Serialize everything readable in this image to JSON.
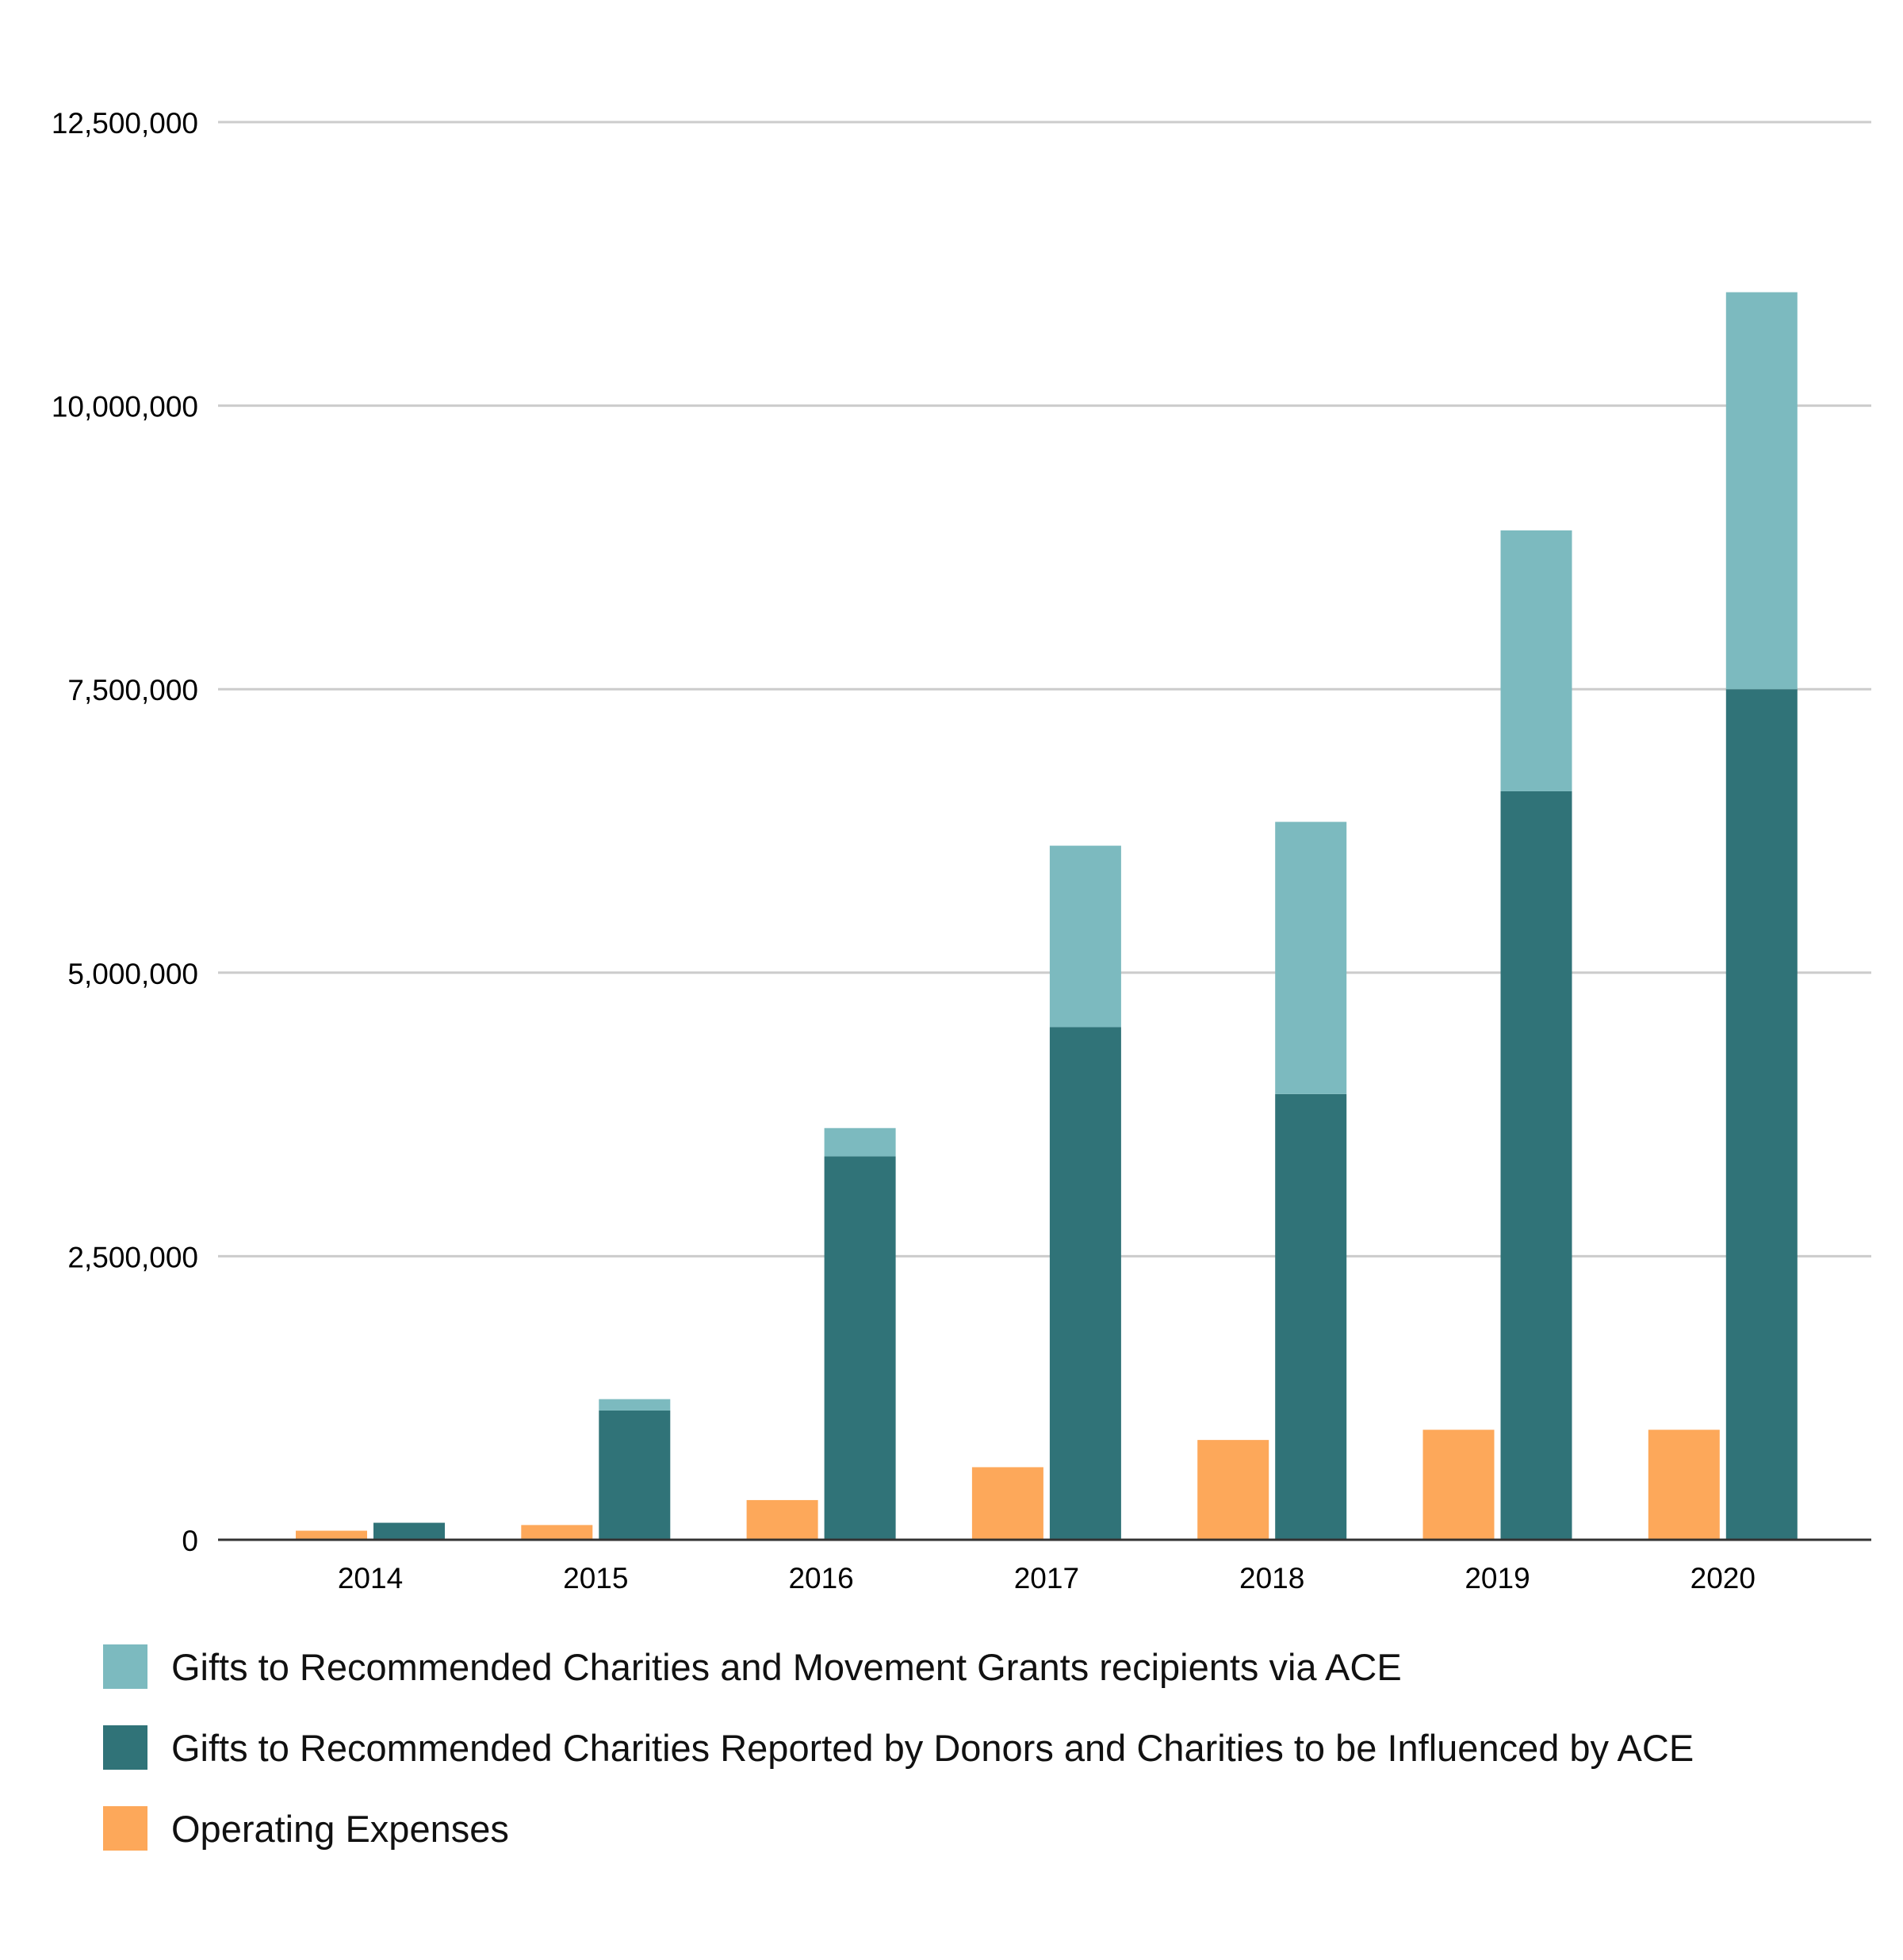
{
  "chart_data": {
    "type": "bar",
    "title": "",
    "xlabel": "",
    "ylabel": "",
    "ylim": [
      0,
      12500000
    ],
    "yticks": [
      0,
      2500000,
      5000000,
      7500000,
      10000000,
      12500000
    ],
    "ytick_labels": [
      "0",
      "2,500,000",
      "5,000,000",
      "7,500,000",
      "10,000,000",
      "12,500,000"
    ],
    "grid": true,
    "legend_position": "bottom",
    "categories": [
      "2014",
      "2015",
      "2016",
      "2017",
      "2018",
      "2019",
      "2020"
    ],
    "series": [
      {
        "name": "Gifts to Recommended Charities and Movement Grants recipients via ACE",
        "color": "#7cbabf",
        "stack": "gifts",
        "values": [
          0,
          100000,
          250000,
          1600000,
          2400000,
          2300000,
          3500000
        ]
      },
      {
        "name": "Gifts to Recommended Charities Reported by Donors and Charities to be Influenced by ACE",
        "color": "#307378",
        "stack": "gifts",
        "values": [
          150000,
          1140000,
          3380000,
          4520000,
          3930000,
          6600000,
          7500000
        ]
      },
      {
        "name": "Operating Expenses",
        "color": "#fda85a",
        "stack": "expenses",
        "values": [
          80000,
          130000,
          350000,
          640000,
          880000,
          970000,
          970000
        ]
      }
    ],
    "legend_order": [
      0,
      1,
      2
    ]
  }
}
